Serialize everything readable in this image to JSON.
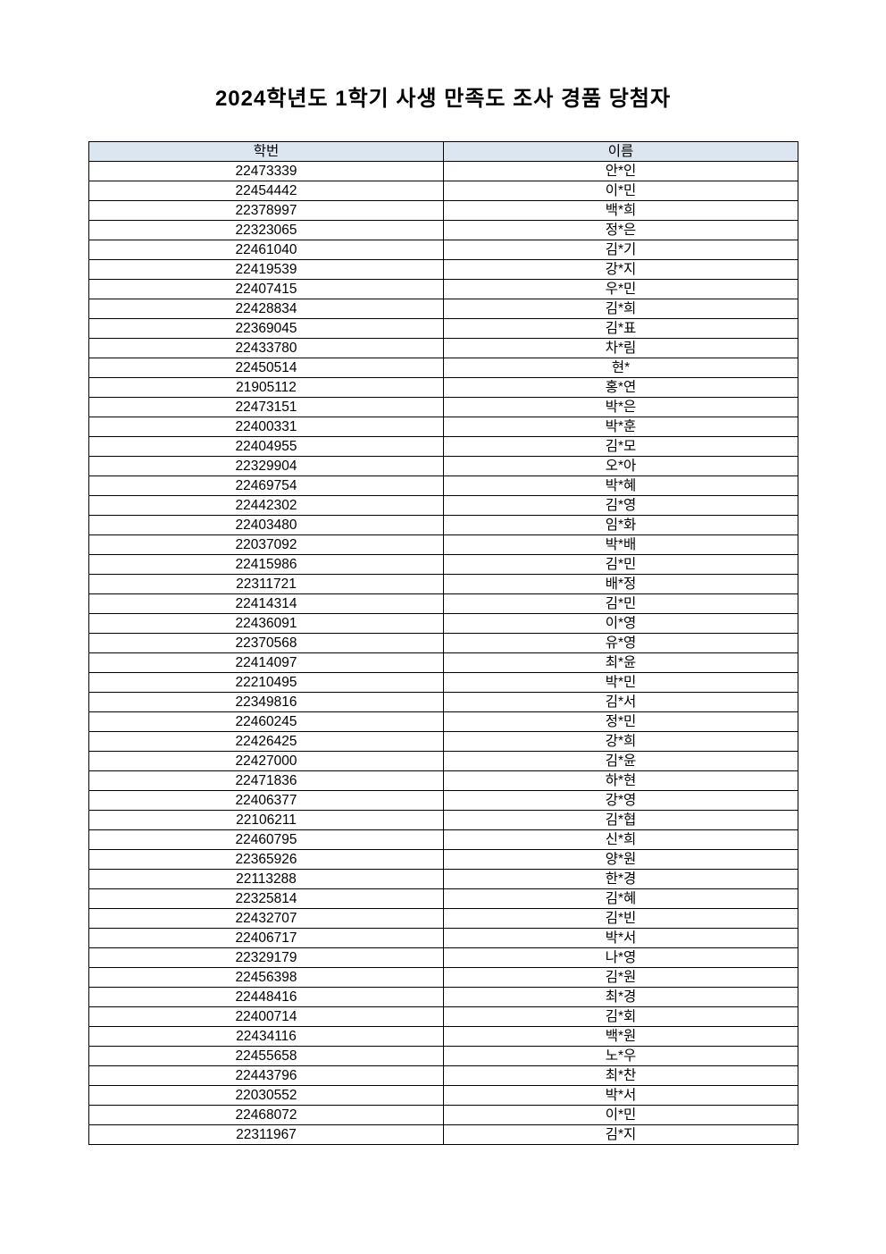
{
  "document": {
    "title": "2024학년도 1학기 사생 만족도 조사 경품 당첨자",
    "table": {
      "headers": [
        "학번",
        "이름"
      ],
      "rows": [
        [
          "22473339",
          "안*인"
        ],
        [
          "22454442",
          "이*민"
        ],
        [
          "22378997",
          "백*희"
        ],
        [
          "22323065",
          "정*은"
        ],
        [
          "22461040",
          "김*기"
        ],
        [
          "22419539",
          "강*지"
        ],
        [
          "22407415",
          "우*민"
        ],
        [
          "22428834",
          "김*희"
        ],
        [
          "22369045",
          "김*표"
        ],
        [
          "22433780",
          "차*림"
        ],
        [
          "22450514",
          "현*"
        ],
        [
          "21905112",
          "홍*연"
        ],
        [
          "22473151",
          "박*은"
        ],
        [
          "22400331",
          "박*훈"
        ],
        [
          "22404955",
          "김*모"
        ],
        [
          "22329904",
          "오*아"
        ],
        [
          "22469754",
          "박*혜"
        ],
        [
          "22442302",
          "김*영"
        ],
        [
          "22403480",
          "임*화"
        ],
        [
          "22037092",
          "박*배"
        ],
        [
          "22415986",
          "김*민"
        ],
        [
          "22311721",
          "배*정"
        ],
        [
          "22414314",
          "김*민"
        ],
        [
          "22436091",
          "이*영"
        ],
        [
          "22370568",
          "유*영"
        ],
        [
          "22414097",
          "최*윤"
        ],
        [
          "22210495",
          "박*민"
        ],
        [
          "22349816",
          "김*서"
        ],
        [
          "22460245",
          "정*민"
        ],
        [
          "22426425",
          "강*희"
        ],
        [
          "22427000",
          "김*윤"
        ],
        [
          "22471836",
          "하*현"
        ],
        [
          "22406377",
          "강*영"
        ],
        [
          "22106211",
          "김*협"
        ],
        [
          "22460795",
          "신*희"
        ],
        [
          "22365926",
          "양*원"
        ],
        [
          "22113288",
          "한*경"
        ],
        [
          "22325814",
          "김*혜"
        ],
        [
          "22432707",
          "김*빈"
        ],
        [
          "22406717",
          "박*서"
        ],
        [
          "22329179",
          "나*영"
        ],
        [
          "22456398",
          "김*원"
        ],
        [
          "22448416",
          "최*경"
        ],
        [
          "22400714",
          "김*회"
        ],
        [
          "22434116",
          "백*원"
        ],
        [
          "22455658",
          "노*우"
        ],
        [
          "22443796",
          "최*찬"
        ],
        [
          "22030552",
          "박*서"
        ],
        [
          "22468072",
          "이*민"
        ],
        [
          "22311967",
          "김*지"
        ]
      ]
    },
    "colors": {
      "header_bg": "#dce6f1",
      "border": "#000000"
    }
  }
}
